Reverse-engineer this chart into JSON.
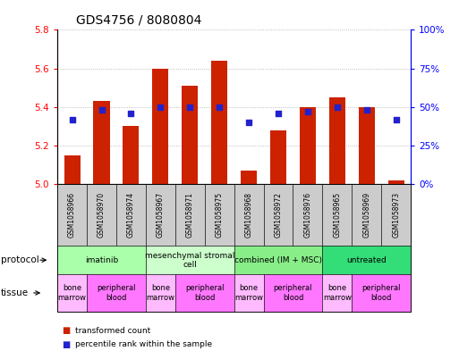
{
  "title": "GDS4756 / 8080804",
  "samples": [
    "GSM1058966",
    "GSM1058970",
    "GSM1058974",
    "GSM1058967",
    "GSM1058971",
    "GSM1058975",
    "GSM1058968",
    "GSM1058972",
    "GSM1058976",
    "GSM1058965",
    "GSM1058969",
    "GSM1058973"
  ],
  "bar_values": [
    5.15,
    5.43,
    5.3,
    5.6,
    5.51,
    5.64,
    5.07,
    5.28,
    5.4,
    5.45,
    5.4,
    5.02
  ],
  "percentile_values": [
    42,
    48,
    46,
    50,
    50,
    50,
    40,
    46,
    47,
    50,
    48,
    42
  ],
  "bar_color": "#cc2200",
  "dot_color": "#2222cc",
  "ylim_left": [
    5.0,
    5.8
  ],
  "ylim_right": [
    0,
    100
  ],
  "yticks_left": [
    5.0,
    5.2,
    5.4,
    5.6,
    5.8
  ],
  "yticks_right": [
    0,
    25,
    50,
    75,
    100
  ],
  "ytick_labels_right": [
    "0%",
    "25%",
    "50%",
    "75%",
    "100%"
  ],
  "protocols": [
    {
      "label": "imatinib",
      "start": 0,
      "end": 3,
      "color": "#aaffaa"
    },
    {
      "label": "mesenchymal stromal\ncell",
      "start": 3,
      "end": 6,
      "color": "#ccffcc"
    },
    {
      "label": "combined (IM + MSC)",
      "start": 6,
      "end": 9,
      "color": "#88ee88"
    },
    {
      "label": "untreated",
      "start": 9,
      "end": 12,
      "color": "#33dd77"
    }
  ],
  "tissues": [
    {
      "label": "bone\nmarrow",
      "start": 0,
      "end": 1,
      "color": "#ffbbff"
    },
    {
      "label": "peripheral\nblood",
      "start": 1,
      "end": 3,
      "color": "#ff77ff"
    },
    {
      "label": "bone\nmarrow",
      "start": 3,
      "end": 4,
      "color": "#ffbbff"
    },
    {
      "label": "peripheral\nblood",
      "start": 4,
      "end": 6,
      "color": "#ff77ff"
    },
    {
      "label": "bone\nmarrow",
      "start": 6,
      "end": 7,
      "color": "#ffbbff"
    },
    {
      "label": "peripheral\nblood",
      "start": 7,
      "end": 9,
      "color": "#ff77ff"
    },
    {
      "label": "bone\nmarrow",
      "start": 9,
      "end": 10,
      "color": "#ffbbff"
    },
    {
      "label": "peripheral\nblood",
      "start": 10,
      "end": 12,
      "color": "#ff77ff"
    }
  ],
  "title_fontsize": 10,
  "tick_fontsize": 7.5,
  "bar_width": 0.55,
  "grid_color": "#aaaaaa",
  "sample_box_color": "#cccccc"
}
